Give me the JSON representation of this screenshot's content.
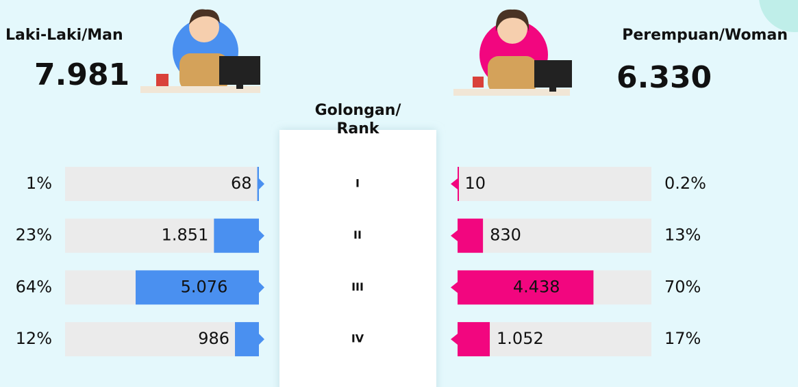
{
  "chart_data": {
    "type": "butterfly",
    "title": "Golongan/\nRank",
    "categories": [
      "I",
      "II",
      "III",
      "IV"
    ],
    "series": [
      {
        "name": "Laki-Laki/Man",
        "color": "#4a90f0",
        "side": "left",
        "total": 7981,
        "total_label": "7.981",
        "values": [
          68,
          1851,
          5076,
          986
        ],
        "value_labels": [
          "68",
          "1.851",
          "5.076",
          "986"
        ],
        "shares": [
          1,
          23,
          64,
          12
        ],
        "share_labels": [
          "1%",
          "23%",
          "64%",
          "12%"
        ]
      },
      {
        "name": "Perempuan/Woman",
        "color": "#f2067f",
        "side": "right",
        "total": 6330,
        "total_label": "6.330",
        "values": [
          10,
          830,
          4438,
          1052
        ],
        "value_labels": [
          "10",
          "830",
          "4.438",
          "1.052"
        ],
        "shares": [
          0.2,
          13,
          70,
          17
        ],
        "share_labels": [
          "0.2%",
          "13%",
          "70%",
          "17%"
        ]
      }
    ]
  }
}
